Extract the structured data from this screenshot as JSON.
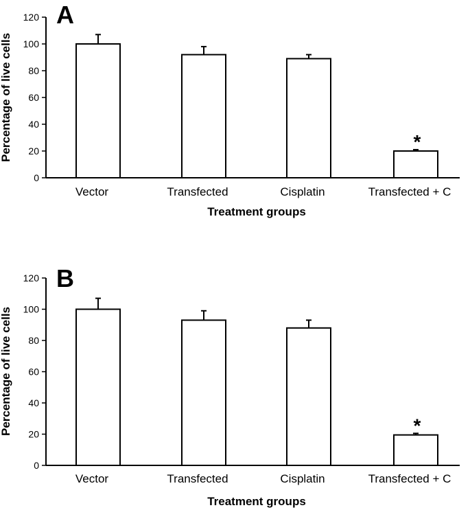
{
  "chart_data": [
    {
      "type": "bar",
      "panel": "A",
      "categories": [
        "Vector",
        "Transfected",
        "Cisplatin",
        "Transfected + C"
      ],
      "values": [
        100,
        92,
        89,
        20
      ],
      "errors": [
        7,
        6,
        3,
        1
      ],
      "annotations": [
        "",
        "",
        "",
        "*"
      ],
      "xlabel": "Treatment groups",
      "ylabel": "Percentage of live cells",
      "ylim": [
        0,
        120
      ],
      "yticks": [
        0,
        20,
        40,
        60,
        80,
        100,
        120
      ]
    },
    {
      "type": "bar",
      "panel": "B",
      "categories": [
        "Vector",
        "Transfected",
        "Cisplatin",
        "Transfected + C"
      ],
      "values": [
        100,
        93,
        88,
        19.5
      ],
      "errors": [
        7,
        6,
        5,
        1
      ],
      "annotations": [
        "",
        "",
        "",
        "*"
      ],
      "xlabel": "Treatment groups",
      "ylabel": "Percentage of live cells",
      "ylim": [
        0,
        120
      ],
      "yticks": [
        0,
        20,
        40,
        60,
        80,
        100,
        120
      ]
    }
  ]
}
